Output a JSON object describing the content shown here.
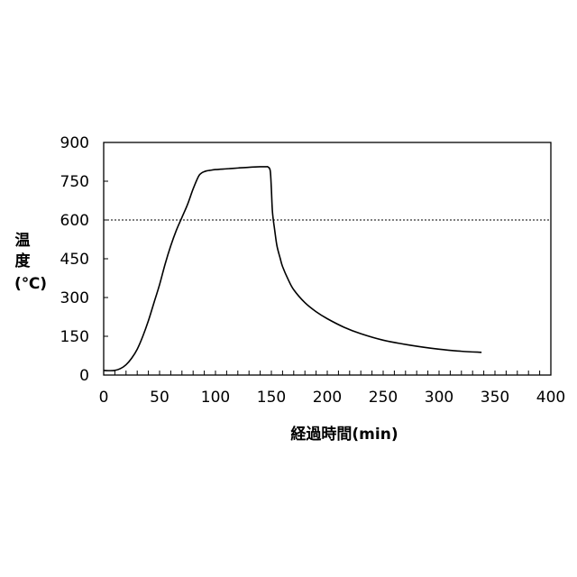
{
  "chart_data": {
    "type": "line",
    "title": "",
    "xlabel": "経過時間(min)",
    "ylabel_lines": [
      "温",
      "度",
      "(℃)"
    ],
    "xlim": [
      0,
      400
    ],
    "ylim": [
      0,
      900
    ],
    "xticks": [
      0,
      50,
      100,
      150,
      200,
      250,
      300,
      350,
      400
    ],
    "yticks": [
      0,
      150,
      300,
      450,
      600,
      750,
      900
    ],
    "x_minor_step": 10,
    "grid": false,
    "legend": "none",
    "reference_line": {
      "y": 600,
      "style": "dotted"
    },
    "series": [
      {
        "color": "#000000",
        "x": [
          0,
          5,
          10,
          15,
          20,
          25,
          30,
          35,
          40,
          45,
          50,
          55,
          60,
          65,
          70,
          75,
          80,
          85,
          88,
          90,
          92,
          95,
          100,
          110,
          120,
          130,
          140,
          145,
          147,
          149,
          150,
          151,
          153,
          155,
          158,
          160,
          165,
          170,
          180,
          190,
          200,
          215,
          230,
          250,
          275,
          300,
          320,
          338
        ],
        "y": [
          18,
          17,
          18,
          25,
          40,
          65,
          100,
          150,
          210,
          280,
          350,
          430,
          500,
          560,
          610,
          660,
          720,
          770,
          783,
          787,
          790,
          792,
          795,
          798,
          801,
          804,
          806,
          806,
          805,
          790,
          720,
          630,
          560,
          500,
          450,
          420,
          370,
          330,
          280,
          245,
          218,
          185,
          160,
          135,
          115,
          100,
          92,
          88
        ]
      }
    ]
  }
}
